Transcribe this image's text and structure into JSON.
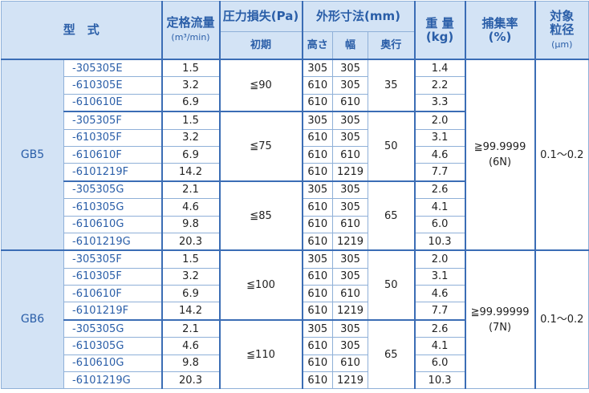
{
  "header": {
    "model": "型　式",
    "flow": "定格流量",
    "flow_unit": "(m³/min)",
    "pressure": "圧力損失(Pa)",
    "pressure_sub": "初期",
    "dims": "外形寸法(mm)",
    "height": "高さ",
    "width": "幅",
    "depth": "奥行",
    "weight": "重 量",
    "weight_unit": "(kg)",
    "efficiency": "捕集率",
    "efficiency_unit": "(%)",
    "particle_1": "対象",
    "particle_2": "粒径",
    "particle_unit": "(μm)"
  },
  "groups": [
    {
      "series": "GB5",
      "efficiency": "≧99.9999",
      "efficiency_note": "(6N)",
      "particle_size": "0.1～0.2",
      "blocks": [
        {
          "pressure": "≦90",
          "depth": "35",
          "rows": [
            {
              "model": "-305305E",
              "flow": "1.5",
              "height": "305",
              "width": "305",
              "weight": "1.4"
            },
            {
              "model": "-610305E",
              "flow": "3.2",
              "height": "610",
              "width": "305",
              "weight": "2.2"
            },
            {
              "model": "-610610E",
              "flow": "6.9",
              "height": "610",
              "width": "610",
              "weight": "3.3"
            }
          ]
        },
        {
          "pressure": "≦75",
          "depth": "50",
          "rows": [
            {
              "model": "-305305F",
              "flow": "1.5",
              "height": "305",
              "width": "305",
              "weight": "2.0"
            },
            {
              "model": "-610305F",
              "flow": "3.2",
              "height": "610",
              "width": "305",
              "weight": "3.1"
            },
            {
              "model": "-610610F",
              "flow": "6.9",
              "height": "610",
              "width": "610",
              "weight": "4.6"
            },
            {
              "model": "-6101219F",
              "flow": "14.2",
              "height": "610",
              "width": "1219",
              "weight": "7.7"
            }
          ]
        },
        {
          "pressure": "≦85",
          "depth": "65",
          "rows": [
            {
              "model": "-305305G",
              "flow": "2.1",
              "height": "305",
              "width": "305",
              "weight": "2.6"
            },
            {
              "model": "-610305G",
              "flow": "4.6",
              "height": "610",
              "width": "305",
              "weight": "4.1"
            },
            {
              "model": "-610610G",
              "flow": "9.8",
              "height": "610",
              "width": "610",
              "weight": "6.0"
            },
            {
              "model": "-6101219G",
              "flow": "20.3",
              "height": "610",
              "width": "1219",
              "weight": "10.3"
            }
          ]
        }
      ]
    },
    {
      "series": "GB6",
      "efficiency": "≧99.99999",
      "efficiency_note": "(7N)",
      "particle_size": "0.1～0.2",
      "blocks": [
        {
          "pressure": "≦100",
          "depth": "50",
          "rows": [
            {
              "model": "-305305F",
              "flow": "1.5",
              "height": "305",
              "width": "305",
              "weight": "2.0"
            },
            {
              "model": "-610305F",
              "flow": "3.2",
              "height": "610",
              "width": "305",
              "weight": "3.1"
            },
            {
              "model": "-610610F",
              "flow": "6.9",
              "height": "610",
              "width": "610",
              "weight": "4.6"
            },
            {
              "model": "-6101219F",
              "flow": "14.2",
              "height": "610",
              "width": "1219",
              "weight": "7.7"
            }
          ]
        },
        {
          "pressure": "≦110",
          "depth": "65",
          "rows": [
            {
              "model": "-305305G",
              "flow": "2.1",
              "height": "305",
              "width": "305",
              "weight": "2.6"
            },
            {
              "model": "-610305G",
              "flow": "4.6",
              "height": "610",
              "width": "305",
              "weight": "4.1"
            },
            {
              "model": "-610610G",
              "flow": "9.8",
              "height": "610",
              "width": "610",
              "weight": "6.0"
            },
            {
              "model": "-6101219G",
              "flow": "20.3",
              "height": "610",
              "width": "1219",
              "weight": "10.3"
            }
          ]
        }
      ]
    }
  ]
}
